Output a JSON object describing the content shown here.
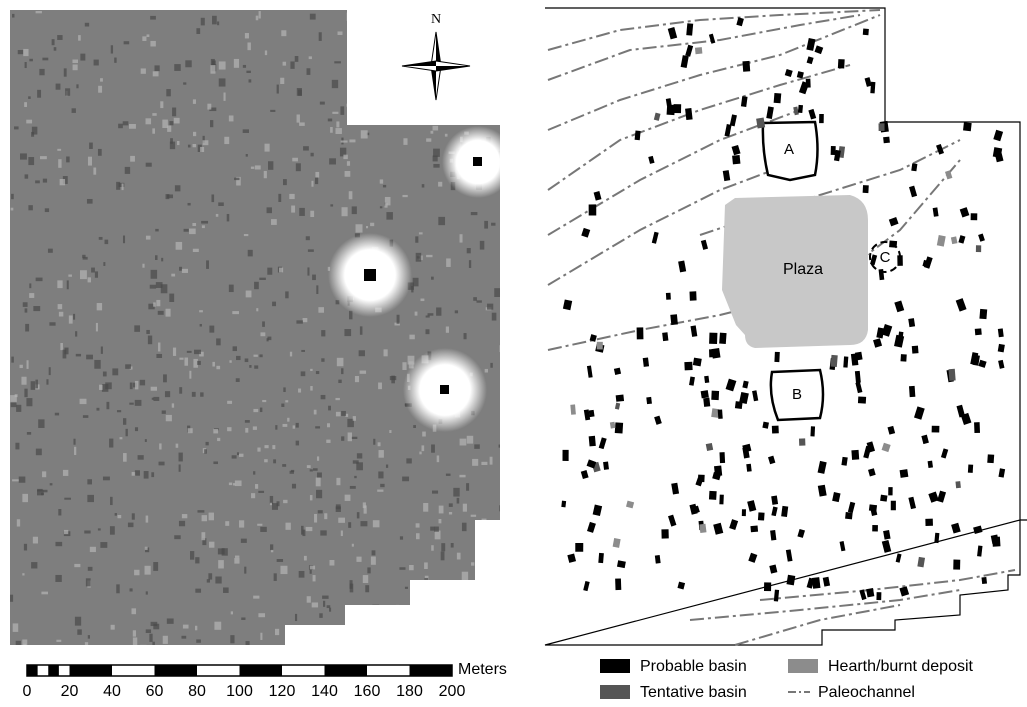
{
  "map": {
    "compass": "N",
    "labels": {
      "a": "A",
      "b": "B",
      "c": "C",
      "plaza": "Plaza"
    },
    "scale_bar": {
      "unit": "Meters",
      "ticks": [
        0,
        20,
        40,
        60,
        80,
        100,
        120,
        140,
        160,
        180,
        200
      ]
    },
    "legend": [
      {
        "label": "Probable basin",
        "color": "#000000"
      },
      {
        "label": "Hearth/burnt deposit",
        "color": "#8c8c8c"
      },
      {
        "label": "Tentative basin",
        "color": "#555555"
      },
      {
        "label": "Paleochannel",
        "color": "#777777"
      }
    ]
  }
}
